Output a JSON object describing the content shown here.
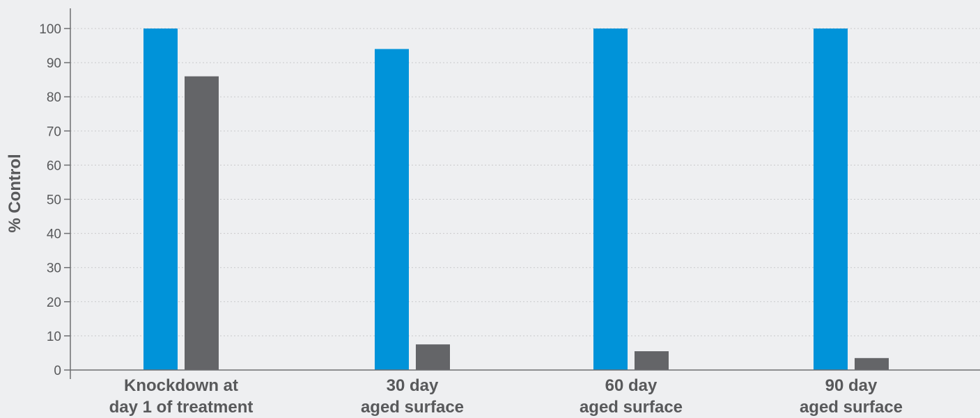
{
  "chart_data": {
    "type": "bar",
    "title": "",
    "xlabel": "",
    "ylabel": "% Control",
    "ylim": [
      0,
      100
    ],
    "yticks": [
      0,
      10,
      20,
      30,
      40,
      50,
      60,
      70,
      80,
      90,
      100
    ],
    "grid": true,
    "categories": [
      [
        "Knockdown at",
        "day 1 of treatment"
      ],
      [
        "30 day",
        "aged surface"
      ],
      [
        "60 day",
        "aged surface"
      ],
      [
        "90 day",
        "aged surface"
      ]
    ],
    "series": [
      {
        "values": [
          100,
          94,
          100,
          100
        ],
        "color": "#0093d9"
      },
      {
        "values": [
          86,
          7.5,
          5.5,
          3.5
        ],
        "color": "#646568"
      }
    ]
  }
}
